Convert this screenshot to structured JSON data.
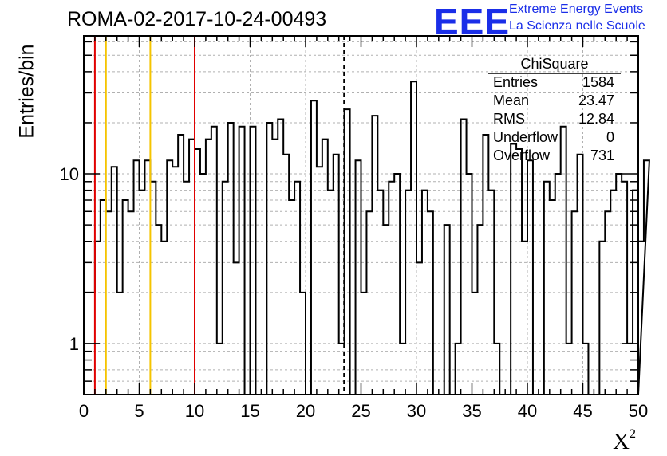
{
  "title": "ROMA-02-2017-10-24-00493",
  "logo": {
    "mark": "EEE",
    "line1": "Extreme Energy Events",
    "line2": "La Scienza nelle Scuole"
  },
  "stats": {
    "title": "ChiSquare",
    "rows": [
      {
        "label": "Entries",
        "value": "1584"
      },
      {
        "label": "Mean",
        "value": "23.47"
      },
      {
        "label": "RMS",
        "value": "12.84"
      },
      {
        "label": "Underflow",
        "value": "0"
      },
      {
        "label": "Overflow",
        "value": "731"
      }
    ]
  },
  "chart_data": {
    "type": "histogram",
    "xlabel": "X",
    "xlabel_sup": "2",
    "ylabel": "Entries/bin",
    "xlim": [
      0,
      50
    ],
    "ylim": [
      0.5,
      65
    ],
    "yscale": "log",
    "bin_width": 0.5,
    "xticks": [
      0,
      5,
      10,
      15,
      20,
      25,
      30,
      35,
      40,
      45,
      50
    ],
    "yticks": [
      {
        "value": 1,
        "label": "1"
      },
      {
        "value": 10,
        "label": "10"
      }
    ],
    "grid": true,
    "counts": [
      2,
      2,
      4,
      7,
      6,
      11,
      2,
      7,
      6,
      12,
      8,
      12,
      9,
      5,
      4,
      12,
      11,
      17,
      9,
      16,
      14,
      10,
      16,
      19,
      1,
      9,
      20,
      3,
      19,
      0,
      19,
      0,
      0,
      20,
      16,
      21,
      13,
      7,
      9,
      2,
      0,
      27,
      11,
      16,
      8,
      13,
      1,
      24,
      0,
      12,
      2,
      6,
      22,
      8,
      5,
      9,
      10,
      1,
      8,
      35,
      3,
      8,
      6,
      0,
      0,
      5,
      0,
      1,
      21,
      10,
      2,
      5,
      17,
      8,
      1,
      0,
      0,
      15,
      14,
      4,
      12,
      0,
      0,
      9,
      7,
      10,
      19,
      1,
      6,
      13,
      1,
      0,
      0,
      4,
      6,
      8,
      10,
      9,
      1,
      8,
      4,
      12
    ],
    "vlines": [
      {
        "x": 1,
        "color": "#e00000",
        "style": "solid"
      },
      {
        "x": 2,
        "color": "#f5c400",
        "style": "solid"
      },
      {
        "x": 6,
        "color": "#f5c400",
        "style": "solid"
      },
      {
        "x": 10,
        "color": "#e00000",
        "style": "solid"
      },
      {
        "x": 23.47,
        "color": "#000000",
        "style": "dashed"
      }
    ]
  }
}
